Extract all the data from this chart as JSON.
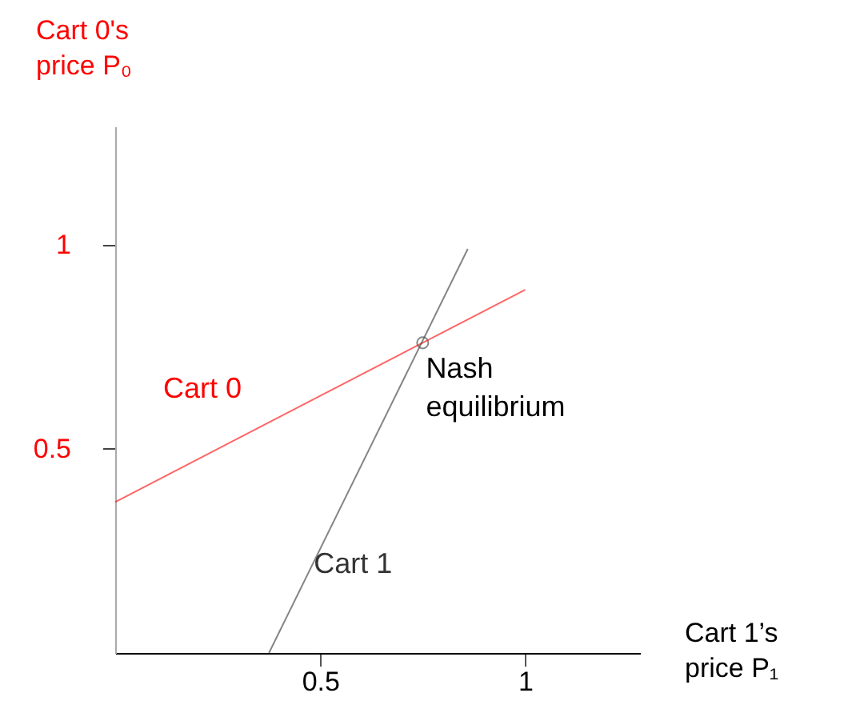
{
  "chart_data": {
    "type": "line",
    "xlabel": "Cart 1’s\nprice  P₁",
    "ylabel": "Cart 0's\nprice  P₀",
    "xlim": [
      0,
      1.28
    ],
    "ylim": [
      0,
      1.29
    ],
    "xticks": [
      0.5,
      1
    ],
    "yticks": [
      0.5,
      1
    ],
    "grid": false,
    "legend": false,
    "series": [
      {
        "name": "Cart 0",
        "color": "#ff0000",
        "x": [
          0,
          1.0
        ],
        "values": [
          0.37,
          0.89
        ]
      },
      {
        "name": "Cart 1",
        "color": "#333333",
        "x": [
          0.375,
          0.86
        ],
        "values": [
          0,
          0.99
        ]
      },
      {
        "type": "scatter",
        "marker": "circle",
        "color": "#555555",
        "x": [
          0.75
        ],
        "values": [
          0.76
        ]
      }
    ],
    "annotations": [
      {
        "text": "Nash\nequilibrium",
        "x": 0.75,
        "y": 0.76
      }
    ]
  }
}
